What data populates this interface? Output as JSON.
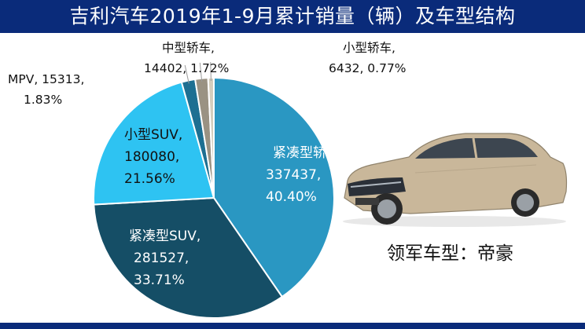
{
  "title": "吉利汽车2019年1-9月累计销量（辆）及车型结构",
  "caption": "领军车型：帝豪",
  "car_image": {
    "name": "帝豪 sedan",
    "color": "#c9b79a"
  },
  "chart_data": {
    "type": "pie",
    "title": "吉利汽车2019年1-9月累计销量（辆）及车型结构",
    "start_angle": 0,
    "slices": [
      {
        "label": "紧凑型轿车",
        "value": 337437,
        "percent": "40.40%",
        "value_text": "337437",
        "color": "#2a97c2",
        "text_color": "#ffffff"
      },
      {
        "label": "紧凑型SUV",
        "value": 281527,
        "percent": "33.71%",
        "value_text": "281527",
        "color": "#154e66",
        "text_color": "#ffffff"
      },
      {
        "label": "小型SUV",
        "value": 180080,
        "percent": "21.56%",
        "value_text": "180080",
        "color": "#2ec3f2",
        "text_color": "#111111"
      },
      {
        "label": "MPV",
        "value": 15313,
        "percent": "1.83%",
        "value_text": "15313",
        "color": "#1d6f92",
        "text_color": "#111111"
      },
      {
        "label": "中型轿车",
        "value": 14402,
        "percent": "1.72%",
        "value_text": "14402",
        "color": "#9a9283",
        "text_color": "#111111"
      },
      {
        "label": "小型轿车",
        "value": 6432,
        "percent": "0.77%",
        "value_text": "6432",
        "color": "#d4cdbd",
        "text_color": "#111111"
      }
    ]
  }
}
